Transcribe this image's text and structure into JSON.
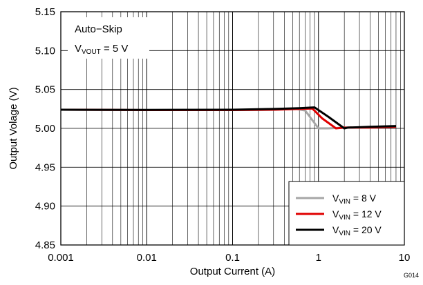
{
  "figure_id": "G014",
  "annotation": {
    "line1": "Auto−Skip",
    "line2_prefix": "V",
    "line2_sub": "VOUT",
    "line2_suffix": " = 5 V"
  },
  "chart_data": {
    "type": "line",
    "xlabel": "Output Current (A)",
    "ylabel": "Output Volage (V)",
    "xscale": "log",
    "xlim": [
      0.001,
      10
    ],
    "ylim": [
      4.85,
      5.15
    ],
    "xticks": [
      "0.001",
      "0.01",
      "0.1",
      "1",
      "10"
    ],
    "yticks": [
      "4.85",
      "4.90",
      "4.95",
      "5.00",
      "5.05",
      "5.10",
      "5.15"
    ],
    "grid": true,
    "legend_position": "bottom-right",
    "series": [
      {
        "name": "VVIN = 8 V",
        "label_prefix": "V",
        "label_sub": "VIN",
        "label_suffix": " = 8 V",
        "color": "#a6a6a6",
        "points": [
          [
            0.001,
            5.024
          ],
          [
            0.01,
            5.0235
          ],
          [
            0.1,
            5.0235
          ],
          [
            0.3,
            5.024
          ],
          [
            0.55,
            5.025
          ],
          [
            0.7,
            5.023
          ],
          [
            1.0,
            5.0
          ],
          [
            1.3,
            5.0
          ],
          [
            2.0,
            5.001
          ],
          [
            4.0,
            5.001
          ],
          [
            8.0,
            5.002
          ]
        ]
      },
      {
        "name": "VVIN = 12 V",
        "label_prefix": "V",
        "label_sub": "VIN",
        "label_suffix": " = 12 V",
        "color": "#e00000",
        "points": [
          [
            0.001,
            5.024
          ],
          [
            0.01,
            5.0235
          ],
          [
            0.1,
            5.0235
          ],
          [
            0.3,
            5.024
          ],
          [
            0.6,
            5.025
          ],
          [
            0.85,
            5.0255
          ],
          [
            1.1,
            5.013
          ],
          [
            1.6,
            5.0
          ],
          [
            2.0,
            5.001
          ],
          [
            4.0,
            5.001
          ],
          [
            8.0,
            5.002
          ]
        ]
      },
      {
        "name": "VVIN = 20 V",
        "label_prefix": "V",
        "label_sub": "VIN",
        "label_suffix": " = 20 V",
        "color": "#000000",
        "points": [
          [
            0.001,
            5.024
          ],
          [
            0.01,
            5.0237
          ],
          [
            0.1,
            5.024
          ],
          [
            0.3,
            5.025
          ],
          [
            0.6,
            5.026
          ],
          [
            0.9,
            5.027
          ],
          [
            1.3,
            5.015
          ],
          [
            2.0,
            5.0
          ],
          [
            2.2,
            5.001
          ],
          [
            4.0,
            5.002
          ],
          [
            8.0,
            5.003
          ]
        ]
      }
    ]
  }
}
